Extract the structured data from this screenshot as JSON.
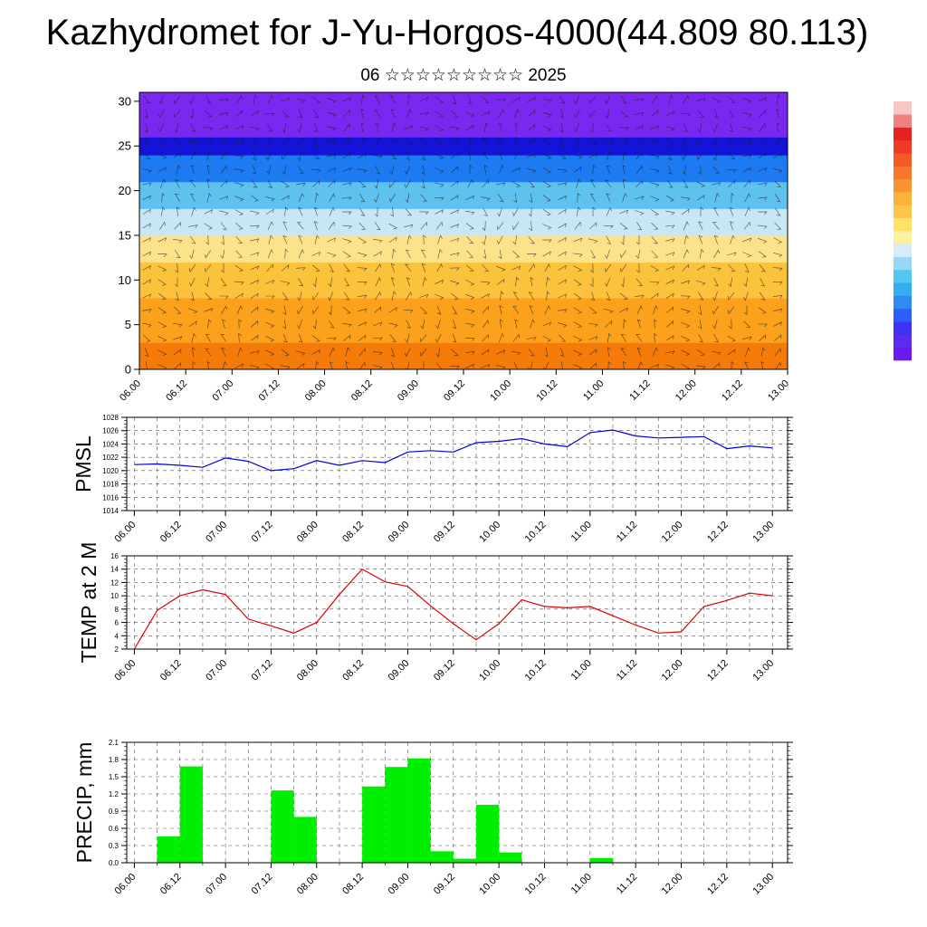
{
  "title": "Kazhydromet for J-Yu-Horgos-4000(44.809 80.113)",
  "subtitle": "06 ☆☆☆☆☆☆☆☆☆ 2025",
  "chart_data": [
    {
      "type": "heatmap",
      "name": "vertical-cross-section",
      "x_tick_labels": [
        "06.00",
        "06.12",
        "07.00",
        "07.12",
        "08.00",
        "08.12",
        "09.00",
        "09.12",
        "10.00",
        "10.12",
        "11.00",
        "11.12",
        "12.00",
        "12.12",
        "13.00"
      ],
      "y_ticks": [
        0,
        5,
        10,
        15,
        20,
        25,
        30
      ],
      "ylim": [
        0,
        31
      ],
      "xlim": [
        0,
        84
      ],
      "overlay": "wind barbs",
      "color_bands": [
        {
          "from": 0,
          "to": 3,
          "color": "#f47a0a"
        },
        {
          "from": 3,
          "to": 8,
          "color": "#fba11b"
        },
        {
          "from": 8,
          "to": 12,
          "color": "#fdc23c"
        },
        {
          "from": 12,
          "to": 15,
          "color": "#fce38a"
        },
        {
          "from": 15,
          "to": 18,
          "color": "#c8e6f5"
        },
        {
          "from": 18,
          "to": 21,
          "color": "#5ec2f0"
        },
        {
          "from": 21,
          "to": 24,
          "color": "#1e7af0"
        },
        {
          "from": 24,
          "to": 26,
          "color": "#1414d8"
        },
        {
          "from": 26,
          "to": 31,
          "color": "#7a28f0"
        }
      ],
      "colorbar": [
        "#6a1bf2",
        "#5b2cf0",
        "#3e33f5",
        "#2d5ff5",
        "#2f8bf2",
        "#34aef0",
        "#53c6f0",
        "#9ad7f5",
        "#d6ecf8",
        "#fdf0a0",
        "#fde266",
        "#fdc64a",
        "#fbb13a",
        "#f99431",
        "#f7772c",
        "#f45a28",
        "#ef3a26",
        "#e82121",
        "#f28080",
        "#f7c7c7"
      ]
    },
    {
      "type": "line",
      "name": "pmsl",
      "ylabel": "PMSL",
      "color": "#0000dd",
      "x_tick_labels": [
        "06.00",
        "06.12",
        "07.00",
        "07.12",
        "08.00",
        "08.12",
        "09.00",
        "09.12",
        "10.00",
        "10.12",
        "11.00",
        "11.12",
        "12.00",
        "12.12",
        "13.00"
      ],
      "y_ticks": [
        1014,
        1016,
        1018,
        1020,
        1022,
        1024,
        1026,
        1028
      ],
      "ylim": [
        1014,
        1028
      ],
      "xlim": [
        -1,
        86
      ],
      "x": [
        0,
        3,
        6,
        9,
        12,
        15,
        18,
        21,
        24,
        27,
        30,
        33,
        36,
        39,
        42,
        45,
        48,
        51,
        54,
        57,
        60,
        63,
        66,
        69,
        72,
        75,
        78,
        81,
        84
      ],
      "values": [
        1020.9,
        1021.0,
        1020.8,
        1020.5,
        1021.9,
        1021.4,
        1020.0,
        1020.3,
        1021.5,
        1020.8,
        1021.5,
        1021.2,
        1022.8,
        1023.0,
        1022.8,
        1024.2,
        1024.4,
        1024.8,
        1024.0,
        1023.6,
        1025.7,
        1026.1,
        1025.2,
        1024.9,
        1025.0,
        1025.1,
        1023.3,
        1023.7,
        1023.4
      ]
    },
    {
      "type": "line",
      "name": "temp-2m",
      "ylabel": "TEMP at 2 M",
      "color": "#dd0000",
      "x_tick_labels": [
        "06.00",
        "06.12",
        "07.00",
        "07.12",
        "08.00",
        "08.12",
        "09.00",
        "09.12",
        "10.00",
        "10.12",
        "11.00",
        "11.12",
        "12.00",
        "12.12",
        "13.00"
      ],
      "y_ticks": [
        2,
        4,
        6,
        8,
        10,
        12,
        14,
        16
      ],
      "ylim": [
        2,
        16
      ],
      "xlim": [
        -1,
        86
      ],
      "x": [
        0,
        3,
        6,
        9,
        12,
        15,
        18,
        21,
        24,
        27,
        30,
        33,
        36,
        39,
        42,
        45,
        48,
        51,
        54,
        57,
        60,
        63,
        66,
        69,
        72,
        75,
        78,
        81,
        84
      ],
      "values": [
        2.0,
        7.8,
        10.0,
        10.9,
        10.2,
        6.5,
        5.5,
        4.4,
        6.0,
        10.2,
        14.0,
        12.1,
        11.4,
        8.5,
        5.8,
        3.4,
        5.8,
        9.4,
        8.4,
        8.2,
        8.4,
        7.0,
        5.6,
        4.4,
        4.6,
        8.4,
        9.3,
        10.4,
        10.0
      ]
    },
    {
      "type": "bar",
      "name": "precip",
      "ylabel": "PRECIP, mm",
      "color": "#00ee00",
      "x_tick_labels": [
        "06.00",
        "06.12",
        "07.00",
        "07.12",
        "08.00",
        "08.12",
        "09.00",
        "09.12",
        "10.00",
        "10.12",
        "11.00",
        "11.12",
        "12.00",
        "12.12",
        "13.00"
      ],
      "y_ticks": [
        0.0,
        0.3,
        0.6,
        0.9,
        1.2,
        1.5,
        1.8,
        2.1
      ],
      "ylim": [
        0.0,
        2.1
      ],
      "xlim": [
        -1,
        86
      ],
      "x": [
        4.5,
        7.5,
        19.5,
        22.5,
        31.5,
        34.5,
        37.5,
        40.5,
        43.5,
        46.5,
        49.5,
        61.5
      ],
      "values": [
        0.46,
        1.68,
        1.26,
        0.8,
        1.33,
        1.67,
        1.82,
        0.2,
        0.07,
        1.01,
        0.18,
        0.08
      ]
    }
  ]
}
